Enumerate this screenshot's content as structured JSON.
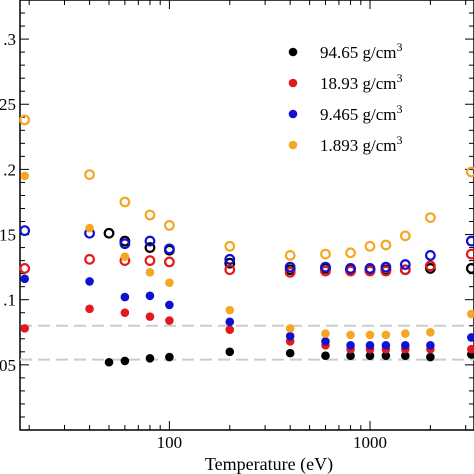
{
  "chart_data": {
    "type": "scatter",
    "xscale": "log",
    "xlim": [
      18,
      3300
    ],
    "ylim": [
      0.0,
      0.33
    ],
    "xlabel": "Temperature (eV)",
    "ylabel": "",
    "x_ticks": [
      {
        "value": 100,
        "label": "100"
      },
      {
        "value": 1000,
        "label": "1000"
      }
    ],
    "y_ticks": [
      {
        "value": 0.05,
        "label": ".05"
      },
      {
        "value": 0.1,
        "label": ".1"
      },
      {
        "value": 0.15,
        "label": ".15"
      },
      {
        "value": 0.2,
        "label": ".2"
      },
      {
        "value": 0.25,
        "label": ".25"
      },
      {
        "value": 0.3,
        "label": ".3"
      }
    ],
    "reference_lines": [
      0.08,
      0.054
    ],
    "legend_position": "top-right",
    "legend": [
      {
        "label": "94.65 g/cm",
        "sup": "3",
        "color": "#000000"
      },
      {
        "label": "18.93 g/cm",
        "sup": "3",
        "color": "#e31a1c"
      },
      {
        "label": "9.465 g/cm",
        "sup": "3",
        "color": "#1010d0"
      },
      {
        "label": "1.893 g/cm",
        "sup": "3",
        "color": "#f5a623"
      }
    ],
    "series": [
      {
        "name": "94.65 g/cm3",
        "color": "#000000",
        "filled": [
          [
            50,
            0.052
          ],
          [
            60,
            0.053
          ],
          [
            80,
            0.055
          ],
          [
            100,
            0.056
          ],
          [
            200,
            0.06
          ],
          [
            400,
            0.059
          ],
          [
            600,
            0.057
          ],
          [
            800,
            0.057
          ],
          [
            1000,
            0.057
          ],
          [
            1200,
            0.057
          ],
          [
            1500,
            0.057
          ],
          [
            2000,
            0.056
          ],
          [
            3200,
            0.058
          ]
        ],
        "open": [
          [
            50,
            0.151
          ],
          [
            60,
            0.145
          ],
          [
            80,
            0.14
          ],
          [
            100,
            0.138
          ],
          [
            200,
            0.128
          ],
          [
            400,
            0.123
          ],
          [
            600,
            0.124
          ],
          [
            800,
            0.123
          ],
          [
            1000,
            0.123
          ],
          [
            1200,
            0.123
          ],
          [
            1500,
            0.123
          ],
          [
            2000,
            0.124
          ],
          [
            3200,
            0.124
          ]
        ]
      },
      {
        "name": "18.93 g/cm3",
        "color": "#e31a1c",
        "filled": [
          [
            19,
            0.078
          ],
          [
            40,
            0.093
          ],
          [
            60,
            0.09
          ],
          [
            80,
            0.087
          ],
          [
            100,
            0.084
          ],
          [
            200,
            0.077
          ],
          [
            400,
            0.068
          ],
          [
            600,
            0.065
          ],
          [
            800,
            0.062
          ],
          [
            1000,
            0.062
          ],
          [
            1200,
            0.062
          ],
          [
            1500,
            0.062
          ],
          [
            2000,
            0.062
          ],
          [
            3200,
            0.062
          ]
        ],
        "open": [
          [
            19,
            0.124
          ],
          [
            40,
            0.131
          ],
          [
            60,
            0.13
          ],
          [
            80,
            0.13
          ],
          [
            100,
            0.129
          ],
          [
            200,
            0.123
          ],
          [
            400,
            0.121
          ],
          [
            600,
            0.122
          ],
          [
            800,
            0.122
          ],
          [
            1000,
            0.122
          ],
          [
            1200,
            0.122
          ],
          [
            1500,
            0.123
          ],
          [
            2000,
            0.126
          ],
          [
            3200,
            0.135
          ]
        ]
      },
      {
        "name": "9.465 g/cm3",
        "color": "#1010d0",
        "filled": [
          [
            19,
            0.116
          ],
          [
            40,
            0.114
          ],
          [
            60,
            0.102
          ],
          [
            80,
            0.103
          ],
          [
            100,
            0.096
          ],
          [
            200,
            0.083
          ],
          [
            400,
            0.072
          ],
          [
            600,
            0.068
          ],
          [
            800,
            0.065
          ],
          [
            1000,
            0.065
          ],
          [
            1200,
            0.065
          ],
          [
            1500,
            0.065
          ],
          [
            2000,
            0.065
          ],
          [
            3200,
            0.071
          ]
        ],
        "open": [
          [
            19,
            0.153
          ],
          [
            40,
            0.151
          ],
          [
            60,
            0.143
          ],
          [
            80,
            0.145
          ],
          [
            100,
            0.139
          ],
          [
            200,
            0.131
          ],
          [
            400,
            0.125
          ],
          [
            600,
            0.125
          ],
          [
            800,
            0.124
          ],
          [
            1000,
            0.124
          ],
          [
            1200,
            0.125
          ],
          [
            1500,
            0.127
          ],
          [
            2000,
            0.134
          ],
          [
            3200,
            0.145
          ]
        ]
      },
      {
        "name": "1.893 g/cm3",
        "color": "#f5a623",
        "filled": [
          [
            19,
            0.195
          ],
          [
            40,
            0.155
          ],
          [
            60,
            0.133
          ],
          [
            80,
            0.121
          ],
          [
            100,
            0.113
          ],
          [
            200,
            0.092
          ],
          [
            400,
            0.078
          ],
          [
            600,
            0.074
          ],
          [
            800,
            0.073
          ],
          [
            1000,
            0.073
          ],
          [
            1200,
            0.073
          ],
          [
            1500,
            0.074
          ],
          [
            2000,
            0.075
          ],
          [
            3200,
            0.089
          ]
        ],
        "open": [
          [
            19,
            0.238
          ],
          [
            40,
            0.196
          ],
          [
            60,
            0.175
          ],
          [
            80,
            0.165
          ],
          [
            100,
            0.157
          ],
          [
            200,
            0.141
          ],
          [
            400,
            0.134
          ],
          [
            600,
            0.135
          ],
          [
            800,
            0.136
          ],
          [
            1000,
            0.141
          ],
          [
            1200,
            0.142
          ],
          [
            1500,
            0.149
          ],
          [
            2000,
            0.163
          ],
          [
            3200,
            0.198
          ]
        ]
      }
    ]
  }
}
